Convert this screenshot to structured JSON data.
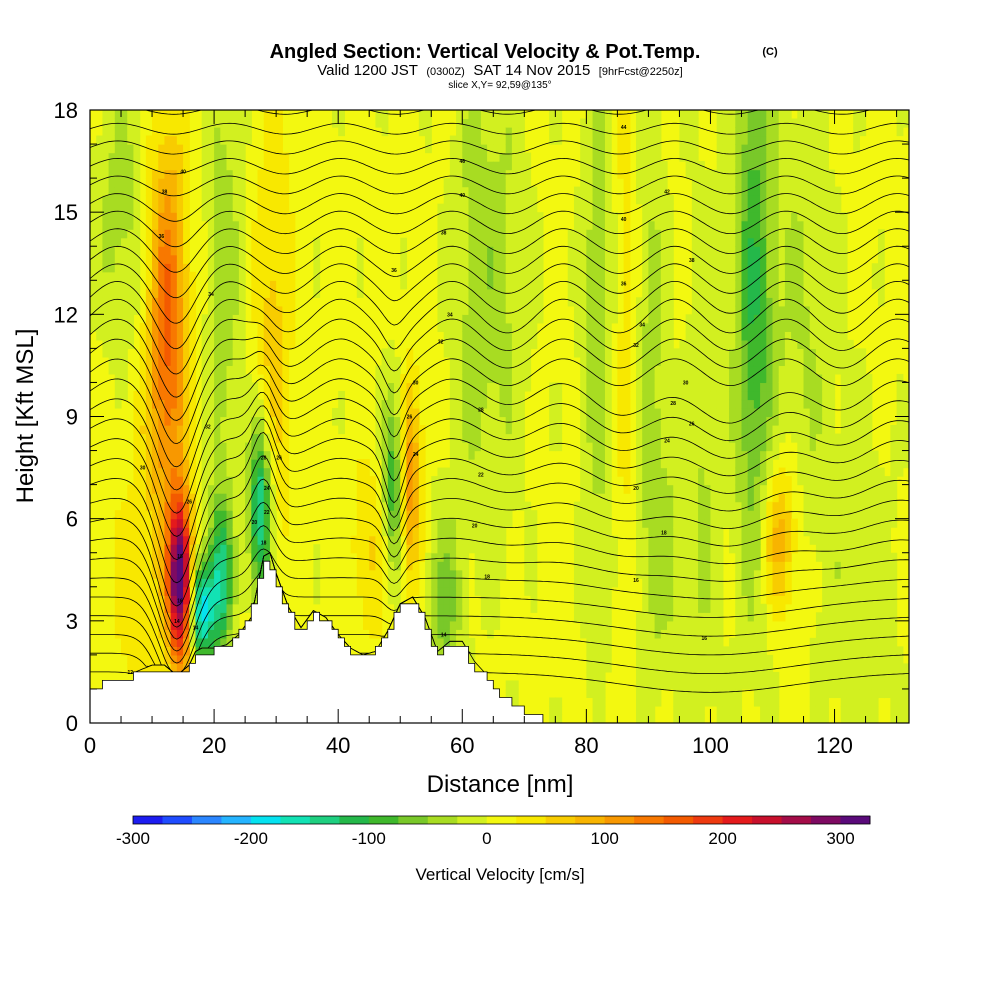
{
  "header": {
    "title": "Angled Section: Vertical Velocity & Pot.Temp.",
    "title_suffix": "(C)",
    "valid_prefix": "Valid 1200 JST",
    "valid_zulu": "(0300Z)",
    "valid_date": "SAT 14 Nov 2015",
    "forecast": "[9hrFcst@2250z]",
    "slice": "slice X,Y= 92,59@135°"
  },
  "chart_data": {
    "type": "heatmap",
    "xlabel": "Distance [nm]",
    "ylabel": "Height [Kft MSL]",
    "xlim": [
      0,
      132
    ],
    "ylim": [
      0,
      18
    ],
    "x_ticks": [
      0,
      20,
      40,
      60,
      80,
      100,
      120
    ],
    "y_ticks": [
      0,
      3,
      6,
      9,
      12,
      15,
      18
    ],
    "colorbar": {
      "label": "Vertical Velocity [cm/s]",
      "range": [
        -300,
        325
      ],
      "tick_values": [
        -300,
        -200,
        -100,
        0,
        100,
        200,
        300
      ],
      "colors": [
        "#1c1cf0",
        "#1f4cff",
        "#2b86ff",
        "#25b4ff",
        "#05e2f0",
        "#12e2b4",
        "#1ecf80",
        "#24b84a",
        "#3fb82c",
        "#79c829",
        "#a8dc22",
        "#d2f020",
        "#f3f810",
        "#f8e800",
        "#f8cc00",
        "#f8b400",
        "#f89800",
        "#f87800",
        "#f35a00",
        "#ee3a10",
        "#e41a1c",
        "#c8102c",
        "#a40c48",
        "#7e0a62",
        "#5a0a7a"
      ],
      "zero_color": "#f3f810"
    },
    "terrain_profile": {
      "x": [
        0,
        6,
        10,
        12,
        14,
        16,
        17,
        18,
        20,
        22,
        24,
        26,
        28,
        29,
        30,
        32,
        34,
        36,
        38,
        40,
        42,
        44,
        46,
        48,
        50,
        52,
        54,
        56,
        58,
        60,
        62,
        64,
        66,
        68,
        70,
        72,
        74,
        76,
        80,
        90,
        100,
        110,
        120,
        132
      ],
      "y": [
        1.0,
        1.3,
        1.6,
        1.6,
        1.3,
        1.6,
        2.0,
        2.1,
        2.1,
        2.2,
        2.5,
        3.0,
        4.8,
        4.9,
        4.3,
        3.3,
        2.7,
        3.2,
        3.0,
        2.5,
        2.1,
        1.9,
        2.0,
        2.6,
        3.4,
        3.6,
        3.0,
        2.0,
        2.3,
        2.3,
        1.7,
        1.3,
        0.9,
        0.6,
        0.3,
        0.15,
        0.1,
        0.05,
        0.0,
        0.0,
        0.0,
        0.0,
        0.0,
        0.0
      ]
    },
    "velocity_features": [
      {
        "x": 12.5,
        "y": 11.5,
        "sx": 2.2,
        "sy": 4.0,
        "value": 150
      },
      {
        "x": 14.5,
        "y": 4.2,
        "sx": 1.3,
        "sy": 1.6,
        "value": 320
      },
      {
        "x": 18.0,
        "y": 3.3,
        "sx": 1.3,
        "sy": 1.0,
        "value": -200
      },
      {
        "x": 21.0,
        "y": 4.2,
        "sx": 1.3,
        "sy": 1.6,
        "value": -150
      },
      {
        "x": 27.5,
        "y": 6.2,
        "sx": 1.3,
        "sy": 1.8,
        "value": -180
      },
      {
        "x": 29.5,
        "y": 11.0,
        "sx": 2.0,
        "sy": 5.0,
        "value": 55
      },
      {
        "x": 8.0,
        "y": 4.0,
        "sx": 4.0,
        "sy": 4.0,
        "value": 25
      },
      {
        "x": 5.0,
        "y": 15.0,
        "sx": 3.0,
        "sy": 3.0,
        "value": -45
      },
      {
        "x": 21.5,
        "y": 13.0,
        "sx": 2.0,
        "sy": 5.0,
        "value": -50
      },
      {
        "x": 45.5,
        "y": 5.0,
        "sx": 2.5,
        "sy": 1.8,
        "value": 45
      },
      {
        "x": 49.0,
        "y": 6.8,
        "sx": 1.3,
        "sy": 2.0,
        "value": -120
      },
      {
        "x": 51.5,
        "y": 7.0,
        "sx": 1.3,
        "sy": 2.0,
        "value": 120
      },
      {
        "x": 57.0,
        "y": 3.5,
        "sx": 2.0,
        "sy": 1.8,
        "value": -70
      },
      {
        "x": 62.0,
        "y": 13.0,
        "sx": 3.0,
        "sy": 5.0,
        "value": -40
      },
      {
        "x": 67.0,
        "y": 13.0,
        "sx": 3.0,
        "sy": 5.0,
        "value": -30
      },
      {
        "x": 82.0,
        "y": 12.0,
        "sx": 2.0,
        "sy": 6.0,
        "value": -50
      },
      {
        "x": 86.5,
        "y": 12.0,
        "sx": 1.6,
        "sy": 6.0,
        "value": 40
      },
      {
        "x": 90.0,
        "y": 11.0,
        "sx": 2.0,
        "sy": 6.0,
        "value": -45
      },
      {
        "x": 93.0,
        "y": 5.0,
        "sx": 2.5,
        "sy": 2.5,
        "value": -35
      },
      {
        "x": 99.0,
        "y": 7.5,
        "sx": 2.0,
        "sy": 6.0,
        "value": -35
      },
      {
        "x": 107.0,
        "y": 12.5,
        "sx": 2.2,
        "sy": 6.0,
        "value": -105
      },
      {
        "x": 111.0,
        "y": 5.5,
        "sx": 2.0,
        "sy": 1.6,
        "value": 90
      },
      {
        "x": 115.0,
        "y": 12.0,
        "sx": 3.5,
        "sy": 5.0,
        "value": -35
      },
      {
        "x": 124.0,
        "y": 3.5,
        "sx": 4.0,
        "sy": 4.0,
        "value": -30
      }
    ],
    "contour_labels": [
      {
        "x": 86,
        "y": 17.5,
        "text": "44"
      },
      {
        "x": 60,
        "y": 16.5,
        "text": "46"
      },
      {
        "x": 15,
        "y": 16.2,
        "text": "40"
      },
      {
        "x": 93,
        "y": 15.6,
        "text": "42"
      },
      {
        "x": 12,
        "y": 15.6,
        "text": "38"
      },
      {
        "x": 60,
        "y": 15.5,
        "text": "40"
      },
      {
        "x": 86,
        "y": 14.8,
        "text": "40"
      },
      {
        "x": 57,
        "y": 14.4,
        "text": "38"
      },
      {
        "x": 11.5,
        "y": 14.3,
        "text": "36"
      },
      {
        "x": 97,
        "y": 13.6,
        "text": "38"
      },
      {
        "x": 49,
        "y": 13.3,
        "text": "36"
      },
      {
        "x": 86,
        "y": 12.9,
        "text": "36"
      },
      {
        "x": 19.5,
        "y": 12.6,
        "text": "34"
      },
      {
        "x": 58,
        "y": 12.0,
        "text": "34"
      },
      {
        "x": 89,
        "y": 11.7,
        "text": "34"
      },
      {
        "x": 56.5,
        "y": 11.2,
        "text": "32"
      },
      {
        "x": 88,
        "y": 11.1,
        "text": "32"
      },
      {
        "x": 52.5,
        "y": 10.0,
        "text": "30"
      },
      {
        "x": 96,
        "y": 10.0,
        "text": "30"
      },
      {
        "x": 94,
        "y": 9.4,
        "text": "28"
      },
      {
        "x": 63,
        "y": 9.2,
        "text": "28"
      },
      {
        "x": 51.5,
        "y": 9.0,
        "text": "26"
      },
      {
        "x": 97,
        "y": 8.8,
        "text": "26"
      },
      {
        "x": 19,
        "y": 8.7,
        "text": "32"
      },
      {
        "x": 93,
        "y": 8.3,
        "text": "24"
      },
      {
        "x": 28,
        "y": 7.8,
        "text": "28"
      },
      {
        "x": 30.5,
        "y": 7.8,
        "text": "26"
      },
      {
        "x": 52.5,
        "y": 7.9,
        "text": "24"
      },
      {
        "x": 8.5,
        "y": 7.5,
        "text": "30"
      },
      {
        "x": 63,
        "y": 7.3,
        "text": "22"
      },
      {
        "x": 28.5,
        "y": 6.9,
        "text": "24"
      },
      {
        "x": 88,
        "y": 6.9,
        "text": "20"
      },
      {
        "x": 16,
        "y": 6.5,
        "text": "26"
      },
      {
        "x": 28.5,
        "y": 6.2,
        "text": "22"
      },
      {
        "x": 26.5,
        "y": 5.9,
        "text": "20"
      },
      {
        "x": 62,
        "y": 5.8,
        "text": "20"
      },
      {
        "x": 92.5,
        "y": 5.6,
        "text": "18"
      },
      {
        "x": 28,
        "y": 5.3,
        "text": "18"
      },
      {
        "x": 14.5,
        "y": 4.9,
        "text": "18"
      },
      {
        "x": 64,
        "y": 4.3,
        "text": "18"
      },
      {
        "x": 88,
        "y": 4.2,
        "text": "16"
      },
      {
        "x": 14.5,
        "y": 3.6,
        "text": "16"
      },
      {
        "x": 14,
        "y": 3.0,
        "text": "14"
      },
      {
        "x": 17,
        "y": 2.8,
        "text": "14"
      },
      {
        "x": 57,
        "y": 2.6,
        "text": "14"
      },
      {
        "x": 99,
        "y": 2.5,
        "text": "16"
      },
      {
        "x": 6.5,
        "y": 1.5,
        "text": "12"
      }
    ]
  }
}
